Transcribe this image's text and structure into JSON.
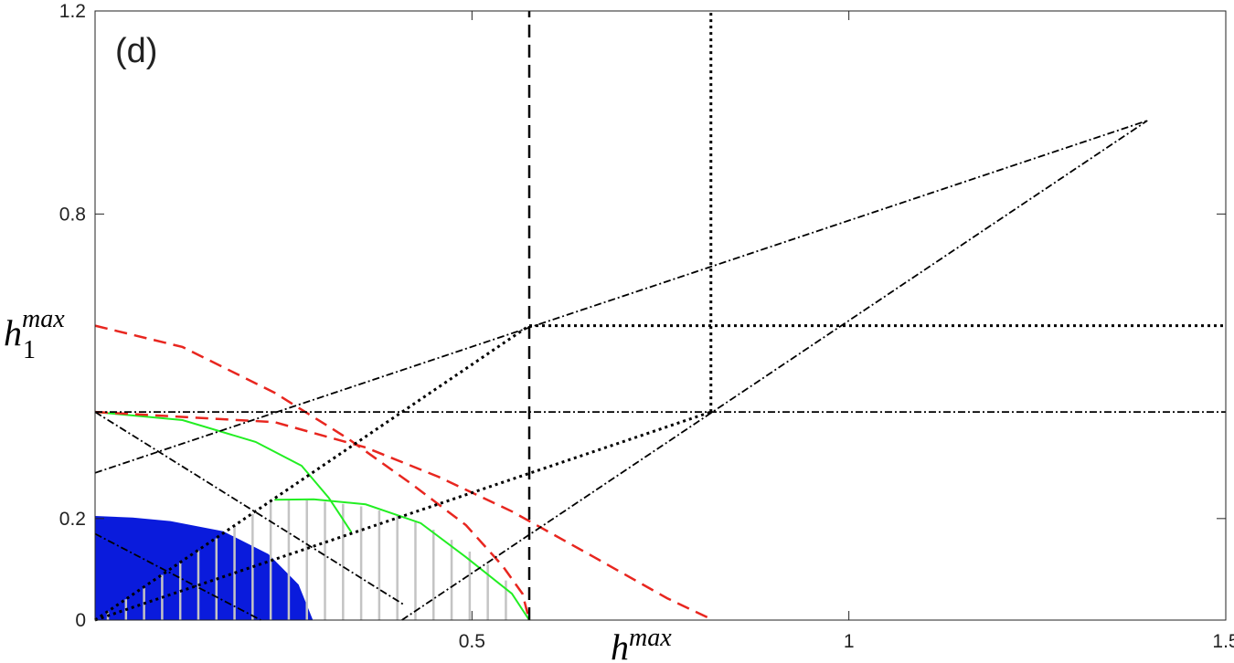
{
  "chart_data": {
    "type": "line",
    "panel_label": "(d)",
    "xlabel": "h",
    "xlabel_sup": "max",
    "ylabel": "h",
    "ylabel_sub": "1",
    "ylabel_sup": "max",
    "xlim": [
      0,
      1.5
    ],
    "ylim": [
      0,
      1.2
    ],
    "xticks": [
      0.5,
      1,
      1.5
    ],
    "yticks": [
      0,
      0.2,
      0.8,
      1.2
    ],
    "series": [
      {
        "kind": "area",
        "color": "#0a1bdc",
        "style": "solid",
        "x": [
          0,
          0.05,
          0.1,
          0.17,
          0.23,
          0.27,
          0.289
        ],
        "values": [
          0.205,
          0.202,
          0.195,
          0.175,
          0.13,
          0.07,
          0
        ]
      },
      {
        "kind": "hatch",
        "color": "#c4c4c4",
        "style": "solid",
        "x": [
          0.017,
          0.041,
          0.065,
          0.089,
          0.113,
          0.137,
          0.161,
          0.185,
          0.209,
          0.233,
          0.257,
          0.281,
          0.305,
          0.329,
          0.353,
          0.377,
          0.401,
          0.425,
          0.449,
          0.473,
          0.497,
          0.521,
          0.545
        ],
        "values": [
          0.017,
          0.041,
          0.065,
          0.089,
          0.113,
          0.137,
          0.161,
          0.185,
          0.209,
          0.233,
          0.237,
          0.236,
          0.233,
          0.229,
          0.224,
          0.216,
          0.205,
          0.193,
          0.178,
          0.158,
          0.135,
          0.11,
          0.078
        ]
      },
      {
        "kind": "line",
        "color": "#22ee22",
        "style": "solid",
        "x": [
          0,
          0.116,
          0.213,
          0.274,
          0.31,
          0.326,
          0.34
        ],
        "values": [
          0.41,
          0.394,
          0.351,
          0.304,
          0.241,
          0.205,
          0.173
        ]
      },
      {
        "kind": "line",
        "color": "#22ee22",
        "style": "solid",
        "x": [
          0.238,
          0.29,
          0.359,
          0.432,
          0.492,
          0.553,
          0.576
        ],
        "values": [
          0.237,
          0.238,
          0.228,
          0.191,
          0.124,
          0.052,
          0
        ]
      },
      {
        "kind": "line",
        "color": "#e8261f",
        "style": "dashed",
        "x": [
          0,
          0.116,
          0.238,
          0.335,
          0.42,
          0.492,
          0.541,
          0.567,
          0.576
        ],
        "values": [
          0.58,
          0.538,
          0.448,
          0.358,
          0.268,
          0.187,
          0.106,
          0.052,
          0
        ]
      },
      {
        "kind": "line",
        "color": "#e8261f",
        "style": "dashed",
        "x": [
          0,
          0.238,
          0.359,
          0.456,
          0.553,
          0.662,
          0.759,
          0.82
        ],
        "values": [
          0.41,
          0.39,
          0.34,
          0.282,
          0.214,
          0.124,
          0.043,
          0
        ]
      },
      {
        "kind": "line",
        "color": "#000000",
        "style": "dashed",
        "x": [
          0.576,
          0.576
        ],
        "values": [
          0,
          1.2
        ]
      },
      {
        "kind": "line",
        "color": "#000000",
        "style": "dotted",
        "x": [
          0.817,
          0.817
        ],
        "values": [
          0.41,
          1.2
        ]
      },
      {
        "kind": "line",
        "color": "#000000",
        "style": "dotted",
        "x": [
          0.576,
          1.5
        ],
        "values": [
          0.58,
          0.58
        ]
      },
      {
        "kind": "line",
        "color": "#000000",
        "style": "dashdot",
        "x": [
          0,
          1.5
        ],
        "values": [
          0.41,
          0.41
        ]
      },
      {
        "kind": "line",
        "color": "#000000",
        "style": "dotted",
        "x": [
          0,
          0.576
        ],
        "values": [
          0,
          0.58
        ]
      },
      {
        "kind": "line",
        "color": "#000000",
        "style": "dotted",
        "x": [
          0,
          0.817
        ],
        "values": [
          0,
          0.41
        ]
      },
      {
        "kind": "line",
        "color": "#000000",
        "style": "dashdot",
        "x": [
          0,
          1.396
        ],
        "values": [
          0.29,
          0.984
        ]
      },
      {
        "kind": "line",
        "color": "#000000",
        "style": "dashdot",
        "x": [
          0.407,
          1.396
        ],
        "values": [
          0,
          0.984
        ]
      },
      {
        "kind": "line",
        "color": "#000000",
        "style": "dashdot",
        "x": [
          0,
          0.41
        ],
        "values": [
          0.41,
          0.03
        ]
      },
      {
        "kind": "line",
        "color": "#000000",
        "style": "dashdot",
        "x": [
          0,
          0.22
        ],
        "values": [
          0.17,
          0
        ]
      }
    ]
  }
}
